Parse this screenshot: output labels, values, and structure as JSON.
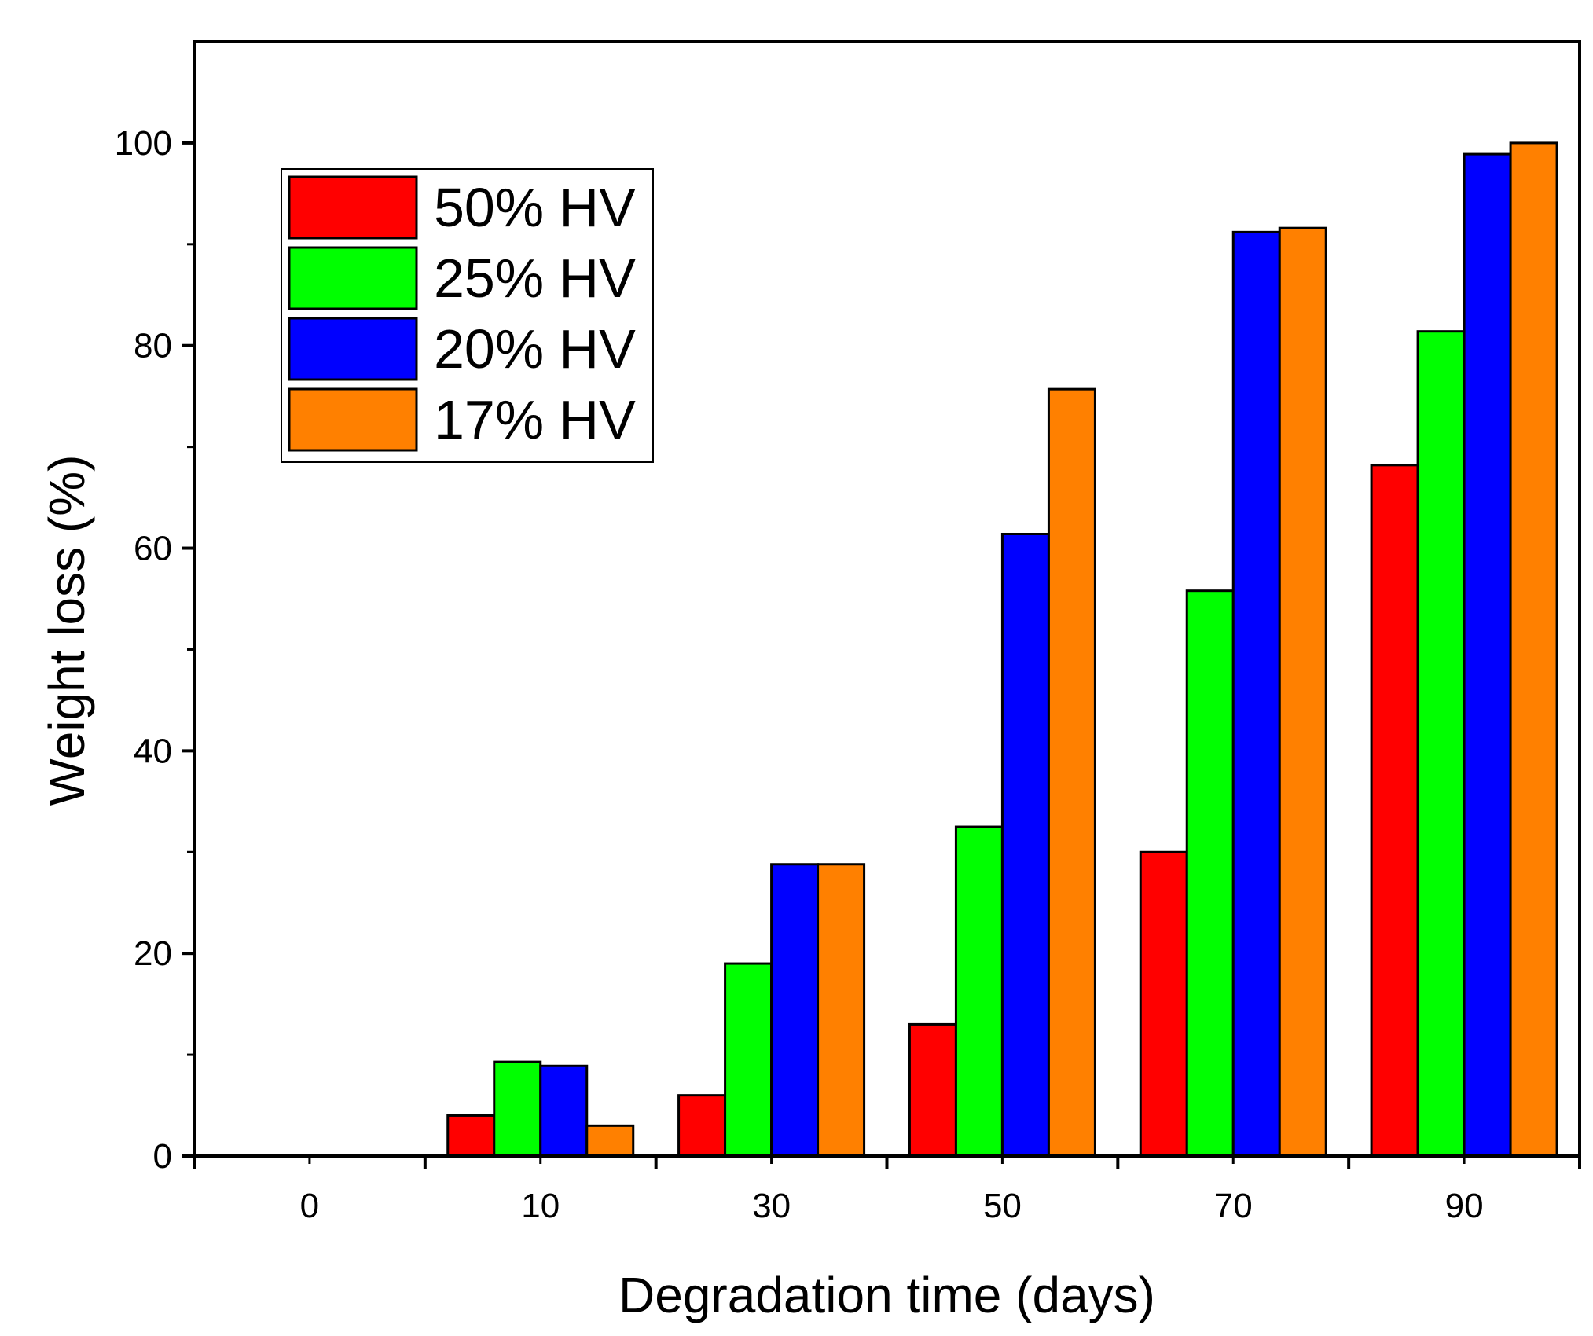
{
  "chart_data": {
    "type": "bar",
    "title": "",
    "xlabel": "Degradation time (days)",
    "ylabel": "Weight loss (%)",
    "categories": [
      "0",
      "10",
      "30",
      "50",
      "70",
      "90"
    ],
    "ylim": [
      0,
      110
    ],
    "yticks": [
      "0",
      "20",
      "40",
      "60",
      "80",
      "100"
    ],
    "ytick_values": [
      0,
      20,
      40,
      60,
      80,
      100
    ],
    "grid": false,
    "legend_position": "top-left",
    "series": [
      {
        "name": "50% HV",
        "color": "#ff0000",
        "values": [
          0,
          4,
          6,
          13,
          30,
          68.2
        ]
      },
      {
        "name": "25% HV",
        "color": "#00ff00",
        "values": [
          0,
          9.3,
          19,
          32.5,
          55.8,
          81.4
        ]
      },
      {
        "name": "20% HV",
        "color": "#0000ff",
        "values": [
          0,
          8.9,
          28.8,
          61.4,
          91.2,
          98.9
        ]
      },
      {
        "name": "17% HV",
        "color": "#ff8000",
        "values": [
          0,
          3,
          28.8,
          75.7,
          91.6,
          100
        ]
      }
    ]
  }
}
